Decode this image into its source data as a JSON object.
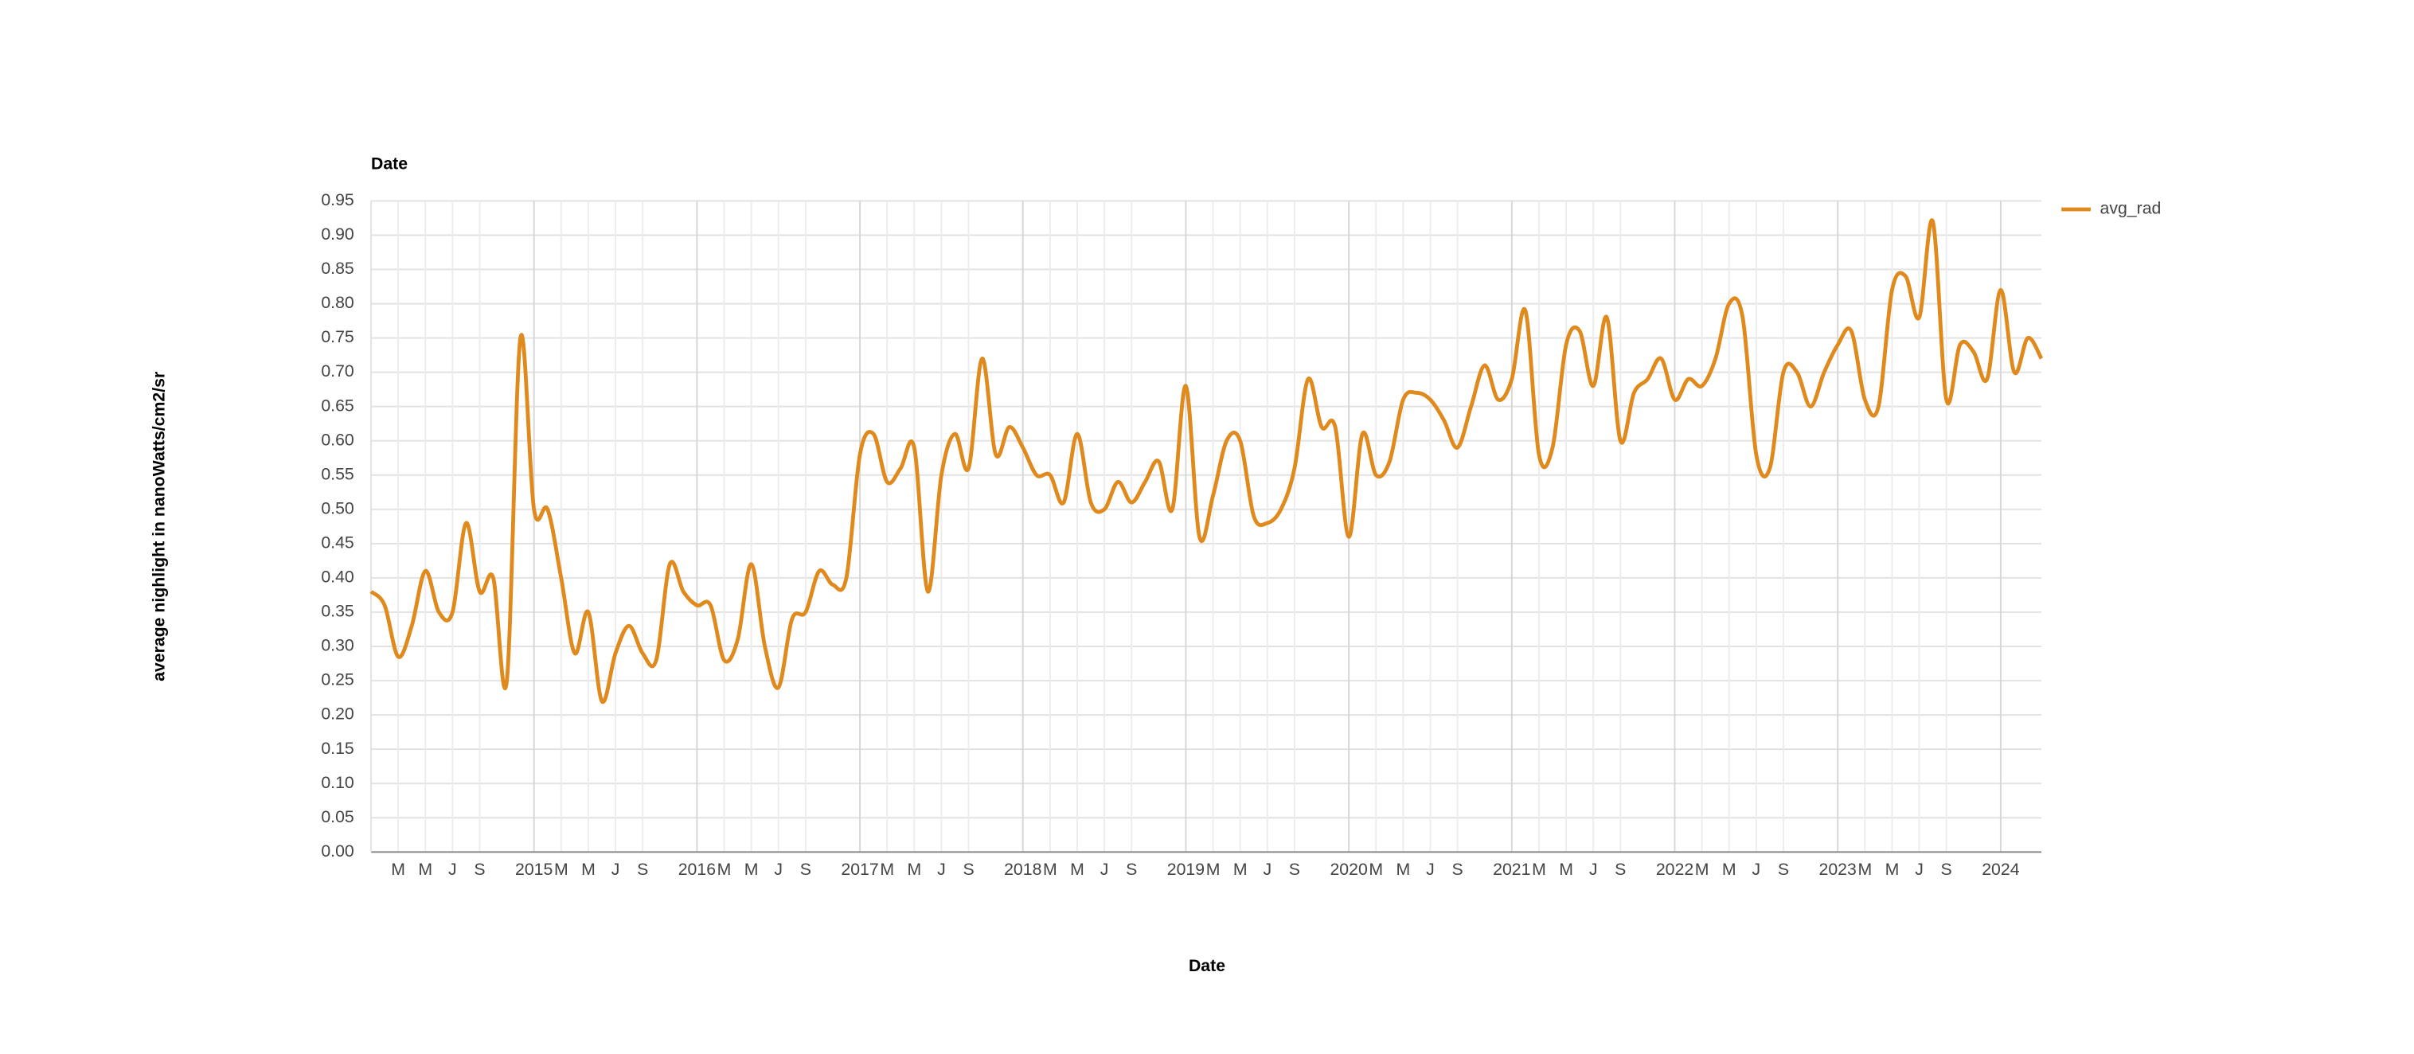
{
  "chart_data": {
    "type": "line",
    "title": "Date",
    "xlabel": "Date",
    "ylabel": "average nighlight in nanoWatts/cm2/sr",
    "x": [
      "2014-01",
      "2014-02",
      "2014-03",
      "2014-04",
      "2014-05",
      "2014-06",
      "2014-07",
      "2014-08",
      "2014-09",
      "2014-10",
      "2014-11",
      "2014-12",
      "2015-01",
      "2015-02",
      "2015-03",
      "2015-04",
      "2015-05",
      "2015-06",
      "2015-07",
      "2015-08",
      "2015-09",
      "2015-10",
      "2015-11",
      "2015-12",
      "2016-01",
      "2016-02",
      "2016-03",
      "2016-04",
      "2016-05",
      "2016-06",
      "2016-07",
      "2016-08",
      "2016-09",
      "2016-10",
      "2016-11",
      "2016-12",
      "2017-01",
      "2017-02",
      "2017-03",
      "2017-04",
      "2017-05",
      "2017-06",
      "2017-07",
      "2017-08",
      "2017-09",
      "2017-10",
      "2017-11",
      "2017-12",
      "2018-01",
      "2018-02",
      "2018-03",
      "2018-04",
      "2018-05",
      "2018-06",
      "2018-07",
      "2018-08",
      "2018-09",
      "2018-10",
      "2018-11",
      "2018-12",
      "2019-01",
      "2019-02",
      "2019-03",
      "2019-04",
      "2019-05",
      "2019-06",
      "2019-07",
      "2019-08",
      "2019-09",
      "2019-10",
      "2019-11",
      "2019-12",
      "2020-01",
      "2020-02",
      "2020-03",
      "2020-04",
      "2020-05",
      "2020-06",
      "2020-07",
      "2020-08",
      "2020-09",
      "2020-10",
      "2020-11",
      "2020-12",
      "2021-01",
      "2021-02",
      "2021-03",
      "2021-04",
      "2021-05",
      "2021-06",
      "2021-07",
      "2021-08",
      "2021-09",
      "2021-10",
      "2021-11",
      "2021-12",
      "2022-01",
      "2022-02",
      "2022-03",
      "2022-04",
      "2022-05",
      "2022-06",
      "2022-07",
      "2022-08",
      "2022-09",
      "2022-10",
      "2022-11",
      "2022-12",
      "2023-01",
      "2023-02",
      "2023-03",
      "2023-04",
      "2023-05",
      "2023-06",
      "2023-07",
      "2023-08",
      "2023-09",
      "2023-10",
      "2023-11",
      "2023-12",
      "2024-01",
      "2024-02",
      "2024-03",
      "2024-04"
    ],
    "series": [
      {
        "name": "avg_rad",
        "color": "#e08a1e",
        "values": [
          0.38,
          0.36,
          0.285,
          0.33,
          0.41,
          0.35,
          0.35,
          0.48,
          0.38,
          0.4,
          0.25,
          0.75,
          0.5,
          0.5,
          0.4,
          0.29,
          0.35,
          0.22,
          0.29,
          0.33,
          0.29,
          0.28,
          0.42,
          0.38,
          0.36,
          0.36,
          0.28,
          0.31,
          0.42,
          0.3,
          0.24,
          0.34,
          0.35,
          0.41,
          0.39,
          0.4,
          0.58,
          0.61,
          0.54,
          0.56,
          0.59,
          0.38,
          0.55,
          0.61,
          0.56,
          0.72,
          0.58,
          0.62,
          0.59,
          0.55,
          0.55,
          0.51,
          0.61,
          0.51,
          0.5,
          0.54,
          0.51,
          0.54,
          0.57,
          0.5,
          0.68,
          0.46,
          0.52,
          0.6,
          0.6,
          0.49,
          0.48,
          0.5,
          0.56,
          0.69,
          0.62,
          0.62,
          0.46,
          0.61,
          0.55,
          0.57,
          0.66,
          0.67,
          0.66,
          0.63,
          0.59,
          0.65,
          0.71,
          0.66,
          0.69,
          0.79,
          0.58,
          0.59,
          0.74,
          0.76,
          0.68,
          0.78,
          0.6,
          0.67,
          0.69,
          0.72,
          0.66,
          0.69,
          0.68,
          0.72,
          0.8,
          0.78,
          0.58,
          0.56,
          0.7,
          0.7,
          0.65,
          0.7,
          0.74,
          0.76,
          0.66,
          0.65,
          0.82,
          0.84,
          0.78,
          0.92,
          0.66,
          0.74,
          0.73,
          0.69,
          0.82,
          0.7,
          0.75,
          0.72
        ]
      }
    ],
    "xlim": [
      "2014-01",
      "2024-04"
    ],
    "xticks": [
      {
        "value": "2014-03",
        "label": "M"
      },
      {
        "value": "2014-05",
        "label": "M"
      },
      {
        "value": "2014-07",
        "label": "J"
      },
      {
        "value": "2014-09",
        "label": "S"
      },
      {
        "value": "2015-01",
        "label": "2015"
      },
      {
        "value": "2015-03",
        "label": "M"
      },
      {
        "value": "2015-05",
        "label": "M"
      },
      {
        "value": "2015-07",
        "label": "J"
      },
      {
        "value": "2015-09",
        "label": "S"
      },
      {
        "value": "2016-01",
        "label": "2016"
      },
      {
        "value": "2016-03",
        "label": "M"
      },
      {
        "value": "2016-05",
        "label": "M"
      },
      {
        "value": "2016-07",
        "label": "J"
      },
      {
        "value": "2016-09",
        "label": "S"
      },
      {
        "value": "2017-01",
        "label": "2017"
      },
      {
        "value": "2017-03",
        "label": "M"
      },
      {
        "value": "2017-05",
        "label": "M"
      },
      {
        "value": "2017-07",
        "label": "J"
      },
      {
        "value": "2017-09",
        "label": "S"
      },
      {
        "value": "2018-01",
        "label": "2018"
      },
      {
        "value": "2018-03",
        "label": "M"
      },
      {
        "value": "2018-05",
        "label": "M"
      },
      {
        "value": "2018-07",
        "label": "J"
      },
      {
        "value": "2018-09",
        "label": "S"
      },
      {
        "value": "2019-01",
        "label": "2019"
      },
      {
        "value": "2019-03",
        "label": "M"
      },
      {
        "value": "2019-05",
        "label": "M"
      },
      {
        "value": "2019-07",
        "label": "J"
      },
      {
        "value": "2019-09",
        "label": "S"
      },
      {
        "value": "2020-01",
        "label": "2020"
      },
      {
        "value": "2020-03",
        "label": "M"
      },
      {
        "value": "2020-05",
        "label": "M"
      },
      {
        "value": "2020-07",
        "label": "J"
      },
      {
        "value": "2020-09",
        "label": "S"
      },
      {
        "value": "2021-01",
        "label": "2021"
      },
      {
        "value": "2021-03",
        "label": "M"
      },
      {
        "value": "2021-05",
        "label": "M"
      },
      {
        "value": "2021-07",
        "label": "J"
      },
      {
        "value": "2021-09",
        "label": "S"
      },
      {
        "value": "2022-01",
        "label": "2022"
      },
      {
        "value": "2022-03",
        "label": "M"
      },
      {
        "value": "2022-05",
        "label": "M"
      },
      {
        "value": "2022-07",
        "label": "J"
      },
      {
        "value": "2022-09",
        "label": "S"
      },
      {
        "value": "2023-01",
        "label": "2023"
      },
      {
        "value": "2023-03",
        "label": "M"
      },
      {
        "value": "2023-05",
        "label": "M"
      },
      {
        "value": "2023-07",
        "label": "J"
      },
      {
        "value": "2023-09",
        "label": "S"
      },
      {
        "value": "2024-01",
        "label": "2024"
      }
    ],
    "ylim": [
      0,
      0.95
    ],
    "yticks": [
      {
        "value": 0,
        "label": "0.00"
      },
      0.05,
      {
        "value": 0.1,
        "label": "0.10"
      },
      0.15,
      {
        "value": 0.2,
        "label": "0.20"
      },
      0.25,
      {
        "value": 0.3,
        "label": "0.30"
      },
      0.35,
      {
        "value": 0.4,
        "label": "0.40"
      },
      0.45,
      {
        "value": 0.5,
        "label": "0.50"
      },
      0.55,
      {
        "value": 0.6,
        "label": "0.60"
      },
      0.65,
      {
        "value": 0.7,
        "label": "0.70"
      },
      0.75,
      {
        "value": 0.8,
        "label": "0.80"
      },
      0.85,
      {
        "value": 0.9,
        "label": "0.90"
      },
      0.95
    ],
    "grid": true,
    "legend": "right"
  }
}
